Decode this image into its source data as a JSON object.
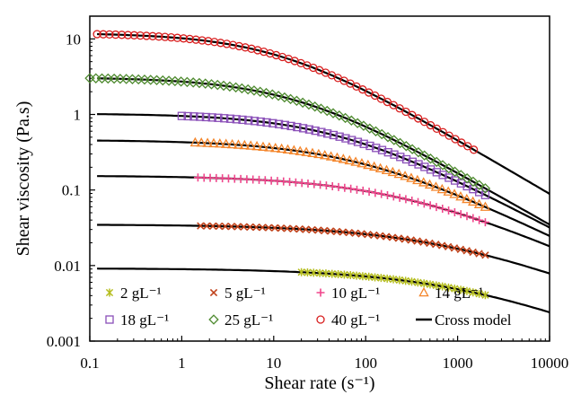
{
  "chart_data": {
    "type": "scatter",
    "title": "",
    "xlabel": "Shear rate (s⁻¹)",
    "ylabel": "Shear viscosity (Pa.s)",
    "x_scale": "log",
    "y_scale": "log",
    "xlim": [
      0.1,
      10000
    ],
    "ylim": [
      0.001,
      20
    ],
    "x_ticks": [
      "0.1",
      "1",
      "10",
      "100",
      "1000",
      "10000"
    ],
    "y_ticks": [
      "0.001",
      "0.01",
      "0.1",
      "1",
      "10"
    ],
    "grid": false,
    "legend_position": "bottom-inside",
    "series": [
      {
        "name": "2 gL⁻¹",
        "concentration": 2,
        "marker": "asterisk",
        "color": "#b5bd1e",
        "x_range": [
          20,
          2000
        ],
        "eta0": 0.0092,
        "lambda": 0.0008,
        "n": 0.5
      },
      {
        "name": "5 gL⁻¹",
        "concentration": 5,
        "marker": "x",
        "color": "#c0421b",
        "x_range": [
          1.6,
          2000
        ],
        "eta0": 0.035,
        "lambda": 0.0012,
        "n": 0.5
      },
      {
        "name": "10 gL⁻¹",
        "concentration": 10,
        "marker": "plus",
        "color": "#f0468c",
        "x_range": [
          1.5,
          2000
        ],
        "eta0": 0.155,
        "lambda": 0.004,
        "n": 0.55
      },
      {
        "name": "14 gL⁻¹",
        "concentration": 14,
        "marker": "triangle",
        "color": "#f4852a",
        "x_range": [
          1.4,
          2000
        ],
        "eta0": 0.46,
        "lambda": 0.012,
        "n": 0.6
      },
      {
        "name": "18 gL⁻¹",
        "concentration": 18,
        "marker": "square",
        "color": "#8a4fb8",
        "x_range": [
          1.0,
          2000
        ],
        "eta0": 1.03,
        "lambda": 0.02,
        "n": 0.65
      },
      {
        "name": "25 gL⁻¹",
        "concentration": 25,
        "marker": "diamond",
        "color": "#4e8a2f",
        "x_range": [
          0.1,
          2000
        ],
        "eta0": 3.1,
        "lambda": 0.06,
        "n": 0.7
      },
      {
        "name": "40 gL⁻¹",
        "concentration": 40,
        "marker": "circle",
        "color": "#d81e1e",
        "x_range": [
          0.12,
          1500
        ],
        "eta0": 12.0,
        "lambda": 0.09,
        "n": 0.72
      }
    ],
    "model": {
      "name": "Cross model",
      "x_range": [
        0.12,
        10000
      ],
      "color": "#000000"
    }
  }
}
